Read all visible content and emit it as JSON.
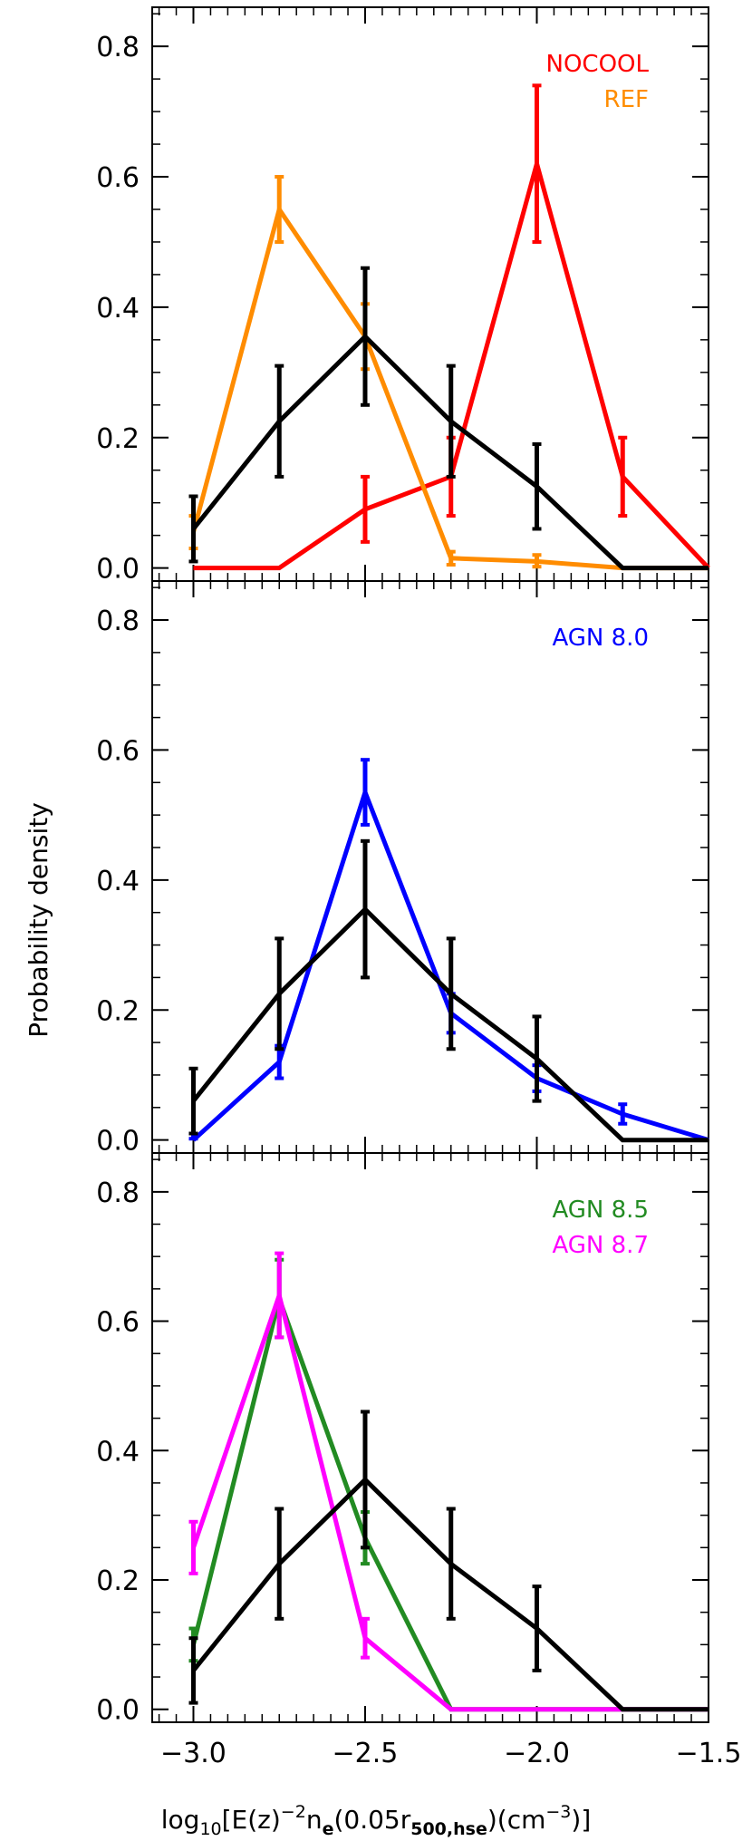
{
  "figure": {
    "ylabel": "Probability density",
    "xlabel_parts": {
      "prefix": "log",
      "base": "10",
      "open": "[E(z)",
      "exp": "−2",
      "ne": "n",
      "ne_sub": "e",
      "arg_open": "(0.05r",
      "r_sub": "500,hse",
      "arg_mid": ")(cm",
      "unit_exp": "−3",
      "close": ")]"
    }
  },
  "colors": {
    "black": "#000000",
    "red": "#ff0000",
    "orange": "#ff8c00",
    "blue": "#0000ff",
    "green": "#228b22",
    "magenta": "#ff00ff"
  },
  "chart_data": [
    {
      "type": "line",
      "panel": "top",
      "xlim": [
        -3.12,
        -1.5
      ],
      "ylim": [
        -0.02,
        0.86
      ],
      "x_ticks": [
        -3.0,
        -2.5,
        -2.0,
        -1.5
      ],
      "y_ticks": [
        0.0,
        0.2,
        0.4,
        0.6,
        0.8
      ],
      "y_tick_labels": [
        "0.0",
        "0.2",
        "0.4",
        "0.6",
        "0.8"
      ],
      "legend": {
        "placement": "top-right",
        "entries": [
          "NOCOOL",
          "REF"
        ]
      },
      "series": [
        {
          "name": "",
          "color": "black",
          "x": [
            -3.0,
            -2.75,
            -2.5,
            -2.25,
            -2.0,
            -1.75,
            -1.5
          ],
          "y": [
            0.06,
            0.225,
            0.355,
            0.225,
            0.125,
            0.0,
            0.0
          ],
          "err": [
            0.05,
            0.085,
            0.105,
            0.085,
            0.065,
            0,
            0
          ],
          "has_err": [
            true,
            true,
            true,
            true,
            true,
            false,
            false
          ]
        },
        {
          "name": "NOCOOL",
          "color": "red",
          "x": [
            -3.0,
            -2.75,
            -2.5,
            -2.25,
            -2.0,
            -1.75,
            -1.5
          ],
          "y": [
            0.0,
            0.0,
            0.09,
            0.14,
            0.62,
            0.14,
            0.0
          ],
          "err": [
            0,
            0,
            0.05,
            0.06,
            0.12,
            0.06,
            0
          ],
          "has_err": [
            false,
            false,
            true,
            true,
            true,
            true,
            false
          ]
        },
        {
          "name": "REF",
          "color": "orange",
          "x": [
            -3.0,
            -2.75,
            -2.5,
            -2.25,
            -2.0,
            -1.75,
            -1.5
          ],
          "y": [
            0.055,
            0.55,
            0.355,
            0.015,
            0.01,
            0.0,
            0.0
          ],
          "err": [
            0.025,
            0.05,
            0.05,
            0.01,
            0.01,
            0,
            0
          ],
          "has_err": [
            true,
            true,
            true,
            true,
            true,
            false,
            false
          ]
        }
      ]
    },
    {
      "type": "line",
      "panel": "middle",
      "xlim": [
        -3.12,
        -1.5
      ],
      "ylim": [
        -0.02,
        0.86
      ],
      "x_ticks": [
        -3.0,
        -2.5,
        -2.0,
        -1.5
      ],
      "y_ticks": [
        0.0,
        0.2,
        0.4,
        0.6,
        0.8
      ],
      "y_tick_labels": [
        "0.0",
        "0.2",
        "0.4",
        "0.6",
        "0.8"
      ],
      "legend": {
        "placement": "top-right",
        "entries": [
          "AGN 8.0"
        ]
      },
      "series": [
        {
          "name": "",
          "color": "black",
          "x": [
            -3.0,
            -2.75,
            -2.5,
            -2.25,
            -2.0,
            -1.75,
            -1.5
          ],
          "y": [
            0.06,
            0.225,
            0.355,
            0.225,
            0.125,
            0.0,
            0.0
          ],
          "err": [
            0.05,
            0.085,
            0.105,
            0.085,
            0.065,
            0,
            0
          ],
          "has_err": [
            true,
            true,
            true,
            true,
            true,
            false,
            false
          ]
        },
        {
          "name": "AGN 8.0",
          "color": "blue",
          "x": [
            -3.0,
            -2.75,
            -2.5,
            -2.25,
            -2.0,
            -1.75,
            -1.5
          ],
          "y": [
            0.0,
            0.12,
            0.535,
            0.195,
            0.095,
            0.04,
            0.0
          ],
          "err": [
            0.01,
            0.025,
            0.05,
            0.03,
            0.02,
            0.015,
            0
          ],
          "has_err": [
            true,
            true,
            true,
            true,
            true,
            true,
            false
          ]
        }
      ]
    },
    {
      "type": "line",
      "panel": "bottom",
      "xlim": [
        -3.12,
        -1.5
      ],
      "ylim": [
        -0.02,
        0.86
      ],
      "x_ticks": [
        -3.0,
        -2.5,
        -2.0,
        -1.5
      ],
      "x_tick_labels": [
        "−3.0",
        "−2.5",
        "−2.0",
        "−1.5"
      ],
      "y_ticks": [
        0.0,
        0.2,
        0.4,
        0.6,
        0.8
      ],
      "y_tick_labels": [
        "0.0",
        "0.2",
        "0.4",
        "0.6",
        "0.8"
      ],
      "legend": {
        "placement": "top-right",
        "entries": [
          "AGN 8.5",
          "AGN 8.7"
        ]
      },
      "series": [
        {
          "name": "",
          "color": "black",
          "x": [
            -3.0,
            -2.75,
            -2.5,
            -2.25,
            -2.0,
            -1.75,
            -1.5
          ],
          "y": [
            0.06,
            0.225,
            0.355,
            0.225,
            0.125,
            0.0,
            0.0
          ],
          "err": [
            0.05,
            0.085,
            0.105,
            0.085,
            0.065,
            0,
            0
          ],
          "has_err": [
            true,
            true,
            true,
            true,
            true,
            false,
            false
          ]
        },
        {
          "name": "AGN 8.5",
          "color": "green",
          "x": [
            -3.0,
            -2.75,
            -2.5,
            -2.25,
            -2.0,
            -1.75,
            -1.5
          ],
          "y": [
            0.1,
            0.635,
            0.265,
            0.0,
            0.0,
            0.0,
            0.0
          ],
          "err": [
            0.025,
            0.06,
            0.04,
            0,
            0,
            0,
            0
          ],
          "has_err": [
            true,
            true,
            true,
            false,
            false,
            false,
            false
          ]
        },
        {
          "name": "AGN 8.7",
          "color": "magenta",
          "x": [
            -3.0,
            -2.75,
            -2.5,
            -2.25,
            -2.0,
            -1.75,
            -1.5
          ],
          "y": [
            0.25,
            0.64,
            0.11,
            0.0,
            0.0,
            0.0,
            0.0
          ],
          "err": [
            0.04,
            0.065,
            0.03,
            0,
            0,
            0,
            0
          ],
          "has_err": [
            true,
            true,
            true,
            false,
            false,
            false,
            false
          ]
        }
      ]
    }
  ]
}
